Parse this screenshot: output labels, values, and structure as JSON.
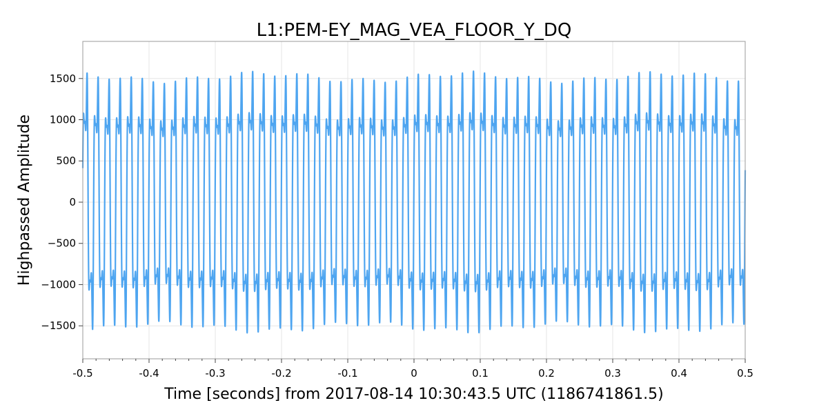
{
  "chart_data": {
    "type": "line",
    "title": "L1:PEM-EY_MAG_VEA_FLOOR_Y_DQ",
    "xlabel": "Time [seconds] from 2017-08-14 10:30:43.5 UTC (1186741861.5)",
    "ylabel": "Highpassed Amplitude",
    "xlim": [
      -0.5,
      0.5
    ],
    "ylim": [
      -1900,
      1950
    ],
    "x_ticks": [
      -0.5,
      -0.4,
      -0.3,
      -0.2,
      -0.1,
      0,
      0.1,
      0.2,
      0.3,
      0.4,
      0.5
    ],
    "x_tick_labels": [
      "-0.5",
      "-0.4",
      "-0.3",
      "-0.2",
      "-0.1",
      "0",
      "0.1",
      "0.2",
      "0.3",
      "0.4",
      "0.5"
    ],
    "y_ticks": [
      -1500,
      -1000,
      -500,
      0,
      500,
      1000,
      1500
    ],
    "y_tick_labels": [
      "−1500",
      "−1000",
      "−500",
      "0",
      "500",
      "1000",
      "1500"
    ],
    "grid": true,
    "series": [
      {
        "color": "#4ea5f0",
        "signal_fundamental_hz": 60,
        "peak_amplitude": 1650,
        "harmonic_amplitude_fraction": 0.33
      }
    ]
  }
}
